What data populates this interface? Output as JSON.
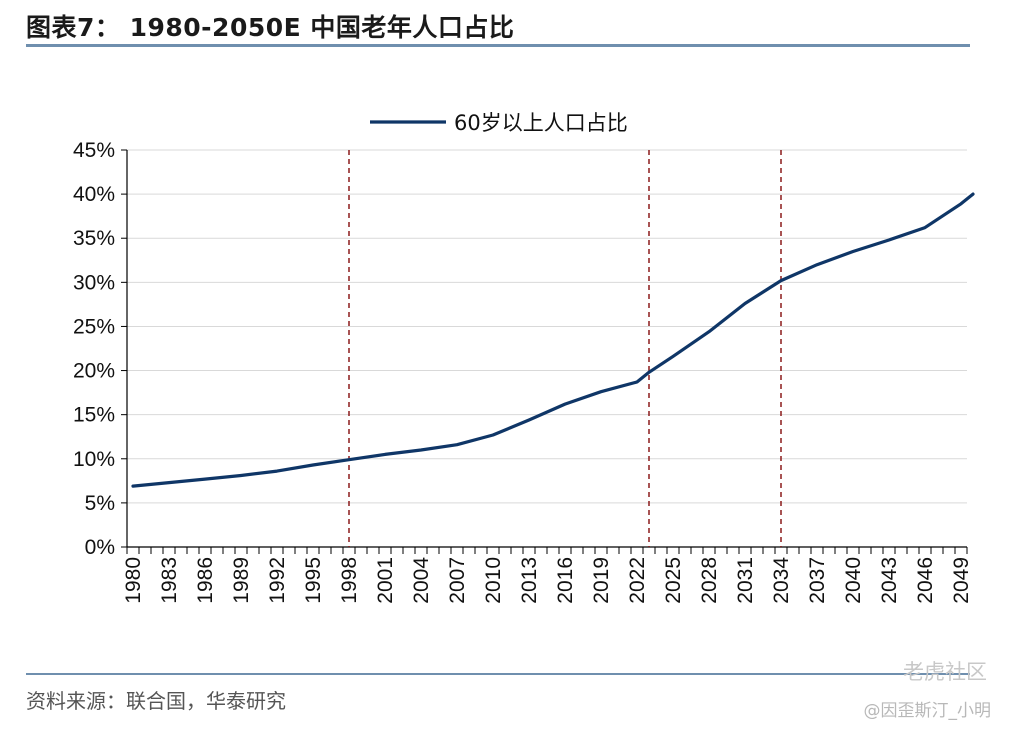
{
  "title": "图表7：  1980-2050E 中国老年人口占比",
  "source": "资料来源：联合国，华泰研究",
  "watermark": {
    "brand": "老虎社区",
    "handle": "@因歪斯汀_小明"
  },
  "colors": {
    "line": "#0f3667",
    "divider": "#8b1a1a",
    "grid": "#d9d9d9",
    "rule": "#6f8fae"
  },
  "chart_data": {
    "type": "line",
    "legend_position": "top-center",
    "grid": true,
    "ylim": [
      0,
      45
    ],
    "yticks": [
      "0%",
      "5%",
      "10%",
      "15%",
      "20%",
      "25%",
      "30%",
      "35%",
      "40%",
      "45%"
    ],
    "x_tick_labels": [
      "1980",
      "1983",
      "1986",
      "1989",
      "1992",
      "1995",
      "1998",
      "2001",
      "2004",
      "2007",
      "2010",
      "2013",
      "2016",
      "2019",
      "2022",
      "2025",
      "2028",
      "2031",
      "2034",
      "2037",
      "2040",
      "2043",
      "2046",
      "2049"
    ],
    "xlim": [
      1980,
      2050
    ],
    "vertical_markers": [
      1998.5,
      2023.5,
      2034.5
    ],
    "series": [
      {
        "name": "60岁以上人口占比",
        "x": [
          1980,
          1983,
          1986,
          1989,
          1992,
          1995,
          1998,
          2001,
          2004,
          2007,
          2010,
          2013,
          2016,
          2019,
          2022,
          2023,
          2025,
          2028,
          2031,
          2034,
          2037,
          2040,
          2043,
          2046,
          2049,
          2050
        ],
        "y": [
          6.9,
          7.3,
          7.7,
          8.1,
          8.6,
          9.3,
          9.9,
          10.5,
          11.0,
          11.6,
          12.7,
          14.4,
          16.2,
          17.6,
          18.7,
          19.8,
          21.6,
          24.4,
          27.6,
          30.2,
          32.0,
          33.5,
          34.8,
          36.2,
          38.9,
          40.0
        ]
      }
    ]
  }
}
